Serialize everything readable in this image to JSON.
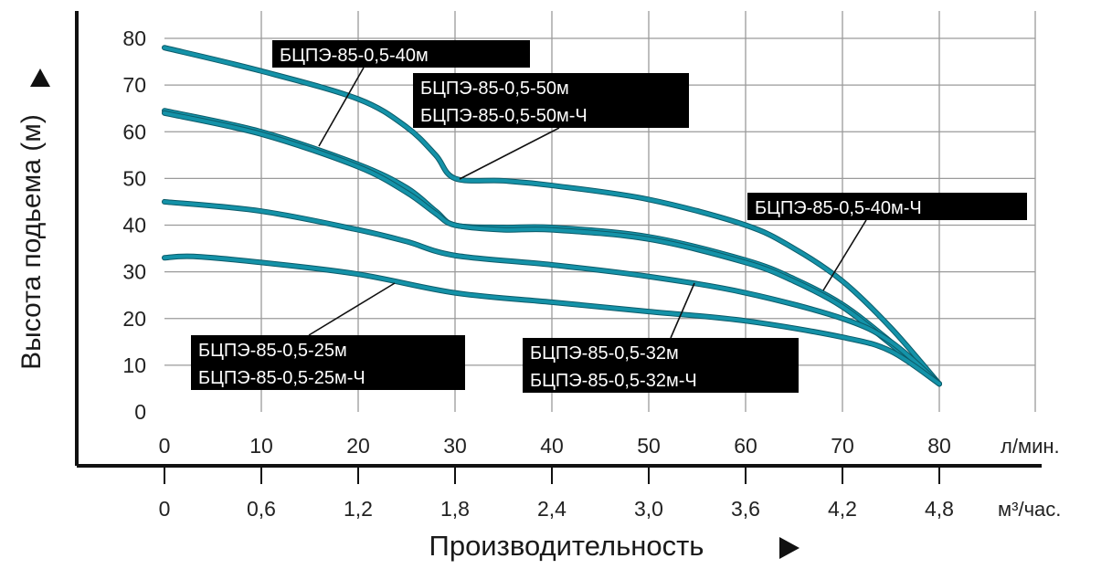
{
  "chart_data": {
    "type": "line",
    "ylabel": "Высота подьема (м)",
    "xlabel": "Производительность",
    "x_unit_top": "л/мин.",
    "x_unit_bottom": "м³/час.",
    "xlim": [
      0,
      80
    ],
    "ylim": [
      0,
      80
    ],
    "x_ticks": [
      "0",
      "10",
      "20",
      "30",
      "40",
      "50",
      "60",
      "70",
      "80"
    ],
    "x2_ticks": [
      "0",
      "0,6",
      "1,2",
      "1,8",
      "2,4",
      "3,0",
      "3,6",
      "4,2",
      "4,8"
    ],
    "y_ticks": [
      "0",
      "10",
      "20",
      "30",
      "40",
      "50",
      "60",
      "70",
      "80"
    ],
    "grid": true,
    "curve_color": "#1492a8",
    "series": [
      {
        "x": [
          0,
          10,
          20,
          25,
          28,
          30,
          35,
          40,
          50,
          60,
          65,
          70,
          75,
          80
        ],
        "y": [
          78,
          73,
          67,
          61,
          55,
          50,
          49.5,
          48.5,
          45.5,
          40,
          35,
          28,
          18,
          6
        ]
      },
      {
        "x": [
          0,
          10,
          20,
          25,
          28,
          30,
          35,
          40,
          50,
          60,
          65,
          70,
          75,
          80
        ],
        "y": [
          64.5,
          60,
          53,
          48,
          43,
          40,
          39.5,
          39.5,
          37.5,
          32.5,
          28.5,
          23,
          15,
          6
        ]
      },
      {
        "x": [
          0,
          10,
          20,
          25,
          28,
          30,
          35,
          40,
          50,
          60,
          65,
          70,
          75,
          80
        ],
        "y": [
          64,
          59.5,
          52.5,
          47,
          42.5,
          40,
          39,
          39,
          37,
          32,
          28,
          22.5,
          14.5,
          6
        ]
      },
      {
        "x": [
          0,
          10,
          20,
          25,
          30,
          40,
          50,
          60,
          70,
          75,
          80
        ],
        "y": [
          45,
          43,
          39,
          36.5,
          33.5,
          31.5,
          29,
          25.5,
          20,
          15,
          6
        ]
      },
      {
        "x": [
          0,
          3,
          10,
          20,
          30,
          40,
          50,
          60,
          70,
          75,
          80
        ],
        "y": [
          33,
          33.3,
          32,
          29.5,
          25.5,
          23.5,
          21.5,
          19.5,
          16,
          13,
          6
        ]
      }
    ],
    "labels": [
      {
        "lines": [
          "БЦПЭ-85-0,5-40м"
        ]
      },
      {
        "lines": [
          "БЦПЭ-85-0,5-50м",
          "БЦПЭ-85-0,5-50м-Ч"
        ]
      },
      {
        "lines": [
          "БЦПЭ-85-0,5-40м-Ч"
        ]
      },
      {
        "lines": [
          "БЦПЭ-85-0,5-25м",
          "БЦПЭ-85-0,5-25м-Ч"
        ]
      },
      {
        "lines": [
          "БЦПЭ-85-0,5-32м",
          "БЦПЭ-85-0,5-32м-Ч"
        ]
      }
    ]
  }
}
